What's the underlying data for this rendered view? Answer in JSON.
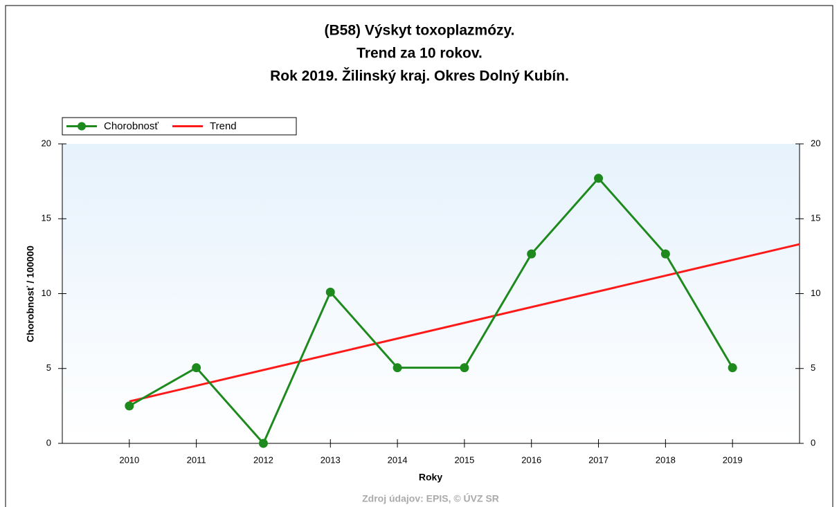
{
  "chart_data": {
    "type": "line",
    "title": [
      "(B58) Výskyt toxoplazmózy.",
      "Trend za 10 rokov.",
      "Rok 2019. Žilinský kraj. Okres Dolný Kubín."
    ],
    "x_label": "Roky",
    "y_label": "Chorobnosť / 100000",
    "source": "Zdroj údajov: EPIS, © ÚVZ SR",
    "xlim": [
      2009,
      2020
    ],
    "xticks": [
      2010,
      2011,
      2012,
      2013,
      2014,
      2015,
      2016,
      2017,
      2018,
      2019
    ],
    "ylim": [
      0,
      20
    ],
    "yticks": [
      0,
      5,
      10,
      15,
      20
    ],
    "y2lim": [
      0,
      20
    ],
    "y2ticks": [
      0,
      5,
      10,
      15,
      20
    ],
    "legend": "top-left",
    "series": [
      {
        "name": "Chorobnosť",
        "color": "#1e8a1e",
        "markers": true,
        "x": [
          2010,
          2011,
          2012,
          2013,
          2014,
          2015,
          2016,
          2017,
          2018,
          2019
        ],
        "values": [
          2.5,
          5.05,
          0,
          10.1,
          5.05,
          5.05,
          12.65,
          17.7,
          12.65,
          5.05
        ]
      },
      {
        "name": "Trend",
        "color": "#ff1a1a",
        "markers": false,
        "x": [
          2010,
          2020
        ],
        "values": [
          2.8,
          13.3
        ]
      }
    ]
  }
}
